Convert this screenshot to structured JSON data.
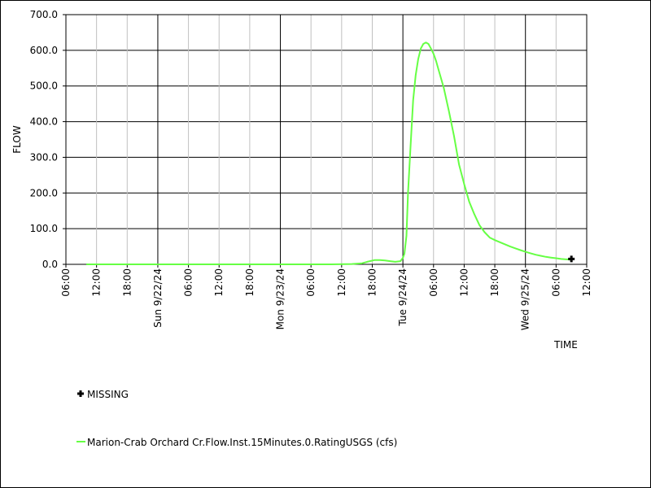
{
  "chart_data": {
    "type": "line",
    "title": "",
    "xlabel": "TIME",
    "ylabel": "FLOW",
    "ylim": [
      0,
      700
    ],
    "y_ticks": [
      "0.0",
      "100.0",
      "200.0",
      "300.0",
      "400.0",
      "500.0",
      "600.0",
      "700.0"
    ],
    "x_range_hours": [
      0,
      102
    ],
    "x_ticks": [
      {
        "h": 0,
        "label": "06:00",
        "major": false
      },
      {
        "h": 6,
        "label": "12:00",
        "major": false
      },
      {
        "h": 12,
        "label": "18:00",
        "major": false
      },
      {
        "h": 18,
        "label": "Sun 9/22/24",
        "major": true
      },
      {
        "h": 24,
        "label": "06:00",
        "major": false
      },
      {
        "h": 30,
        "label": "12:00",
        "major": false
      },
      {
        "h": 36,
        "label": "18:00",
        "major": false
      },
      {
        "h": 42,
        "label": "Mon 9/23/24",
        "major": true
      },
      {
        "h": 48,
        "label": "06:00",
        "major": false
      },
      {
        "h": 54,
        "label": "12:00",
        "major": false
      },
      {
        "h": 60,
        "label": "18:00",
        "major": false
      },
      {
        "h": 66,
        "label": "Tue 9/24/24",
        "major": true
      },
      {
        "h": 72,
        "label": "06:00",
        "major": false
      },
      {
        "h": 78,
        "label": "12:00",
        "major": false
      },
      {
        "h": 84,
        "label": "18:00",
        "major": false
      },
      {
        "h": 90,
        "label": "Wed 9/25/24",
        "major": true
      },
      {
        "h": 96,
        "label": "06:00",
        "major": false
      },
      {
        "h": 102,
        "label": "12:00",
        "major": false
      }
    ],
    "grid": true,
    "legend_position": "bottom-left",
    "series": [
      {
        "name": "Marion-Crab Orchard Cr.Flow.Inst.15Minutes.0.RatingUSGS (cfs)",
        "color": "#66ff44",
        "x": [
          4,
          20,
          40,
          52,
          56,
          58,
          59,
          60.5,
          61.5,
          62.5,
          63.5,
          64.5,
          65.5,
          66,
          66.3,
          66.7,
          67,
          67.5,
          68,
          68.5,
          69,
          69.5,
          70,
          70.5,
          71,
          71.5,
          72,
          72.5,
          73,
          74,
          75,
          76,
          77,
          78,
          79,
          80,
          81,
          82,
          83,
          84,
          85,
          86,
          87,
          88,
          89,
          90,
          91,
          92,
          93,
          94,
          95,
          96,
          97,
          98,
          99
        ],
        "y": [
          0,
          0,
          0,
          0,
          1,
          3,
          7,
          12,
          12,
          11,
          9,
          7,
          9,
          18,
          30,
          80,
          200,
          330,
          460,
          530,
          575,
          605,
          618,
          622,
          618,
          605,
          590,
          570,
          545,
          495,
          430,
          360,
          280,
          225,
          175,
          140,
          110,
          90,
          75,
          68,
          62,
          56,
          50,
          45,
          40,
          35,
          31,
          27,
          24,
          21,
          19,
          17,
          15,
          14,
          13
        ]
      }
    ],
    "missing": {
      "label": "MISSING",
      "points": [
        {
          "x": 99,
          "y": 15
        }
      ]
    }
  }
}
